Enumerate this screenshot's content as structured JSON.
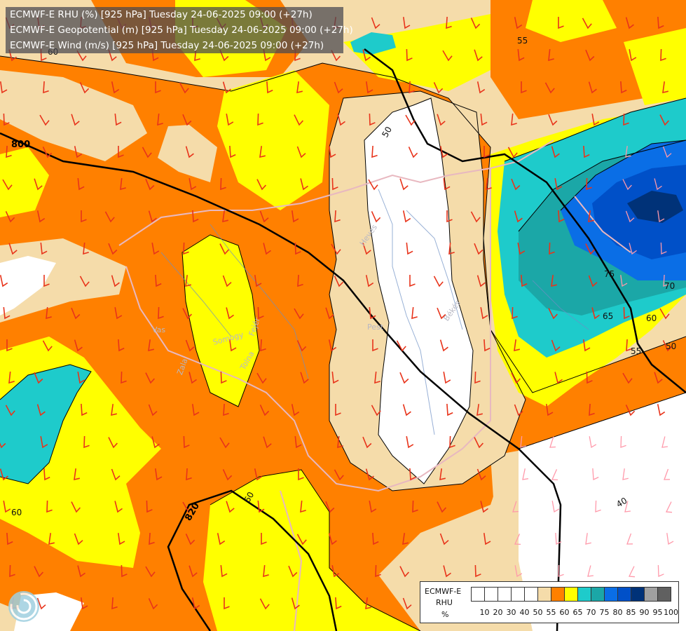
{
  "titles": [
    "ECMWF-E RHU (%) [925 hPa] Tuesday 24-06-2025 09:00 (+27h)",
    "ECMWF-E Geopotential (m) [925 hPa] Tuesday 24-06-2025 09:00 (+27h)",
    "ECMWF-E Wind (m/s) [925 hPa] Tuesday 24-06-2025 09:00 (+27h)"
  ],
  "legend": {
    "model": "ECMWF-E",
    "variable": "RHU",
    "unit": "%",
    "levels": [
      "10",
      "20",
      "30",
      "40",
      "50",
      "55",
      "60",
      "65",
      "70",
      "75",
      "80",
      "85",
      "90",
      "95",
      "100"
    ],
    "colors": [
      "#ffffff",
      "#ffffff",
      "#ffffff",
      "#ffffff",
      "#ffffff",
      "#f5dcaa",
      "#ff8000",
      "#ffff00",
      "#1ecbcb",
      "#1ba7a7",
      "#0a6ee6",
      "#0050c8",
      "#003278",
      "#a0a0a0",
      "#606060"
    ]
  },
  "geopotential_labels": [
    "800",
    "820"
  ],
  "rhu_contour_labels": [
    "55",
    "55",
    "50",
    "75",
    "70",
    "65",
    "60",
    "55",
    "50",
    "40",
    "60",
    "60",
    "60"
  ],
  "place_labels": [
    "Heves",
    "Pest",
    "Békés",
    "Vas",
    "Somogy",
    "Fejér",
    "Tolna",
    "Zala"
  ],
  "icons": {
    "logo": "wave-swirl-logo"
  }
}
